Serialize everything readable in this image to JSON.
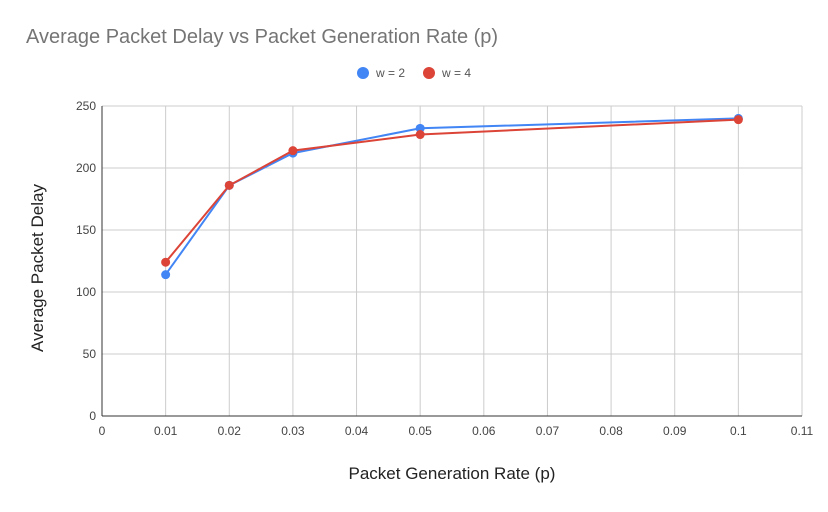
{
  "chart_data": {
    "type": "line",
    "title": "Average Packet Delay vs Packet Generation Rate (p)",
    "xlabel": "Packet Generation Rate (p)",
    "ylabel": "Average Packet Delay",
    "xlim": [
      0,
      0.11
    ],
    "ylim": [
      0,
      250
    ],
    "xticks": [
      0,
      0.01,
      0.02,
      0.03,
      0.04,
      0.05,
      0.06,
      0.07,
      0.08,
      0.09,
      0.1,
      0.11
    ],
    "xtick_labels": [
      "0",
      "0.01",
      "0.02",
      "0.03",
      "0.04",
      "0.05",
      "0.06",
      "0.07",
      "0.08",
      "0.09",
      "0.1",
      "0.11"
    ],
    "yticks": [
      0,
      50,
      100,
      150,
      200,
      250
    ],
    "ytick_labels": [
      "0",
      "50",
      "100",
      "150",
      "200",
      "250"
    ],
    "grid": true,
    "legend_position": "top",
    "series": [
      {
        "name": "w = 2",
        "color": "#4285F4",
        "x": [
          0.01,
          0.02,
          0.03,
          0.05,
          0.1
        ],
        "y": [
          114,
          186,
          212,
          232,
          240
        ]
      },
      {
        "name": "w = 4",
        "color": "#DB4437",
        "x": [
          0.01,
          0.02,
          0.03,
          0.05,
          0.1
        ],
        "y": [
          124,
          186,
          214,
          227,
          239
        ]
      }
    ]
  }
}
